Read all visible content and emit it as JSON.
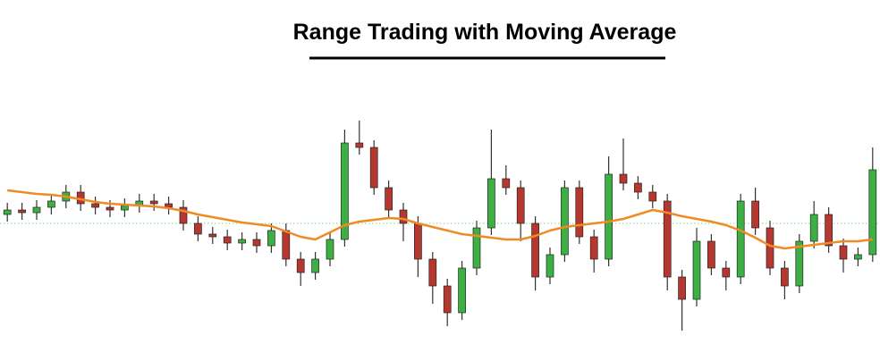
{
  "chart_data": {
    "type": "candlestick",
    "title": "Range Trading with Moving Average",
    "ylim": [
      0,
      400
    ],
    "up_color": "#3cb043",
    "down_color": "#b5372f",
    "open": [
      160,
      165,
      162,
      168,
      175,
      185,
      172,
      168,
      165,
      170,
      175,
      172,
      168,
      150,
      138,
      135,
      128,
      132,
      125,
      142,
      110,
      95,
      110,
      132,
      240,
      235,
      190,
      165,
      150,
      110,
      80,
      50,
      100,
      145,
      200,
      190,
      150,
      90,
      115,
      190,
      135,
      110,
      205,
      195,
      185,
      175,
      90,
      65,
      130,
      100,
      90,
      175,
      145,
      100,
      80,
      130,
      160,
      125,
      110,
      115
    ],
    "high": [
      173,
      173,
      176,
      183,
      193,
      193,
      180,
      176,
      178,
      183,
      183,
      180,
      176,
      158,
      146,
      143,
      140,
      140,
      150,
      150,
      118,
      118,
      140,
      255,
      265,
      243,
      198,
      173,
      158,
      118,
      88,
      108,
      153,
      255,
      215,
      198,
      158,
      123,
      198,
      198,
      143,
      225,
      245,
      203,
      193,
      183,
      98,
      145,
      138,
      108,
      183,
      190,
      153,
      108,
      138,
      175,
      168,
      133,
      123,
      235
    ],
    "low": [
      152,
      154,
      154,
      160,
      167,
      164,
      160,
      157,
      157,
      162,
      164,
      160,
      142,
      130,
      127,
      120,
      120,
      117,
      117,
      102,
      80,
      87,
      102,
      124,
      227,
      182,
      157,
      130,
      90,
      60,
      35,
      42,
      92,
      137,
      182,
      130,
      75,
      82,
      107,
      127,
      95,
      102,
      187,
      177,
      167,
      75,
      30,
      57,
      92,
      75,
      82,
      137,
      92,
      65,
      72,
      122,
      117,
      95,
      102,
      107
    ],
    "close": [
      165,
      162,
      168,
      175,
      185,
      172,
      168,
      165,
      170,
      175,
      172,
      168,
      150,
      138,
      135,
      128,
      132,
      125,
      142,
      110,
      95,
      110,
      132,
      240,
      235,
      190,
      165,
      150,
      110,
      80,
      50,
      100,
      145,
      200,
      190,
      150,
      90,
      115,
      190,
      135,
      110,
      205,
      195,
      185,
      175,
      90,
      65,
      130,
      100,
      90,
      175,
      145,
      100,
      80,
      130,
      160,
      125,
      110,
      115,
      210
    ],
    "moving_average": {
      "color": "#f08a24",
      "values": [
        187,
        185,
        183,
        182,
        180,
        177,
        174,
        172,
        171,
        170,
        169,
        167,
        164,
        160,
        157,
        154,
        151,
        149,
        147,
        141,
        135,
        132,
        140,
        148,
        152,
        154,
        156,
        155,
        150,
        146,
        142,
        138,
        136,
        134,
        132,
        132,
        136,
        142,
        146,
        148,
        150,
        152,
        155,
        160,
        165,
        162,
        158,
        155,
        152,
        148,
        142,
        134,
        125,
        122,
        124,
        126,
        128,
        130,
        130,
        132
      ]
    },
    "reference_line": {
      "value": 150,
      "color": "#7fd67f"
    }
  }
}
